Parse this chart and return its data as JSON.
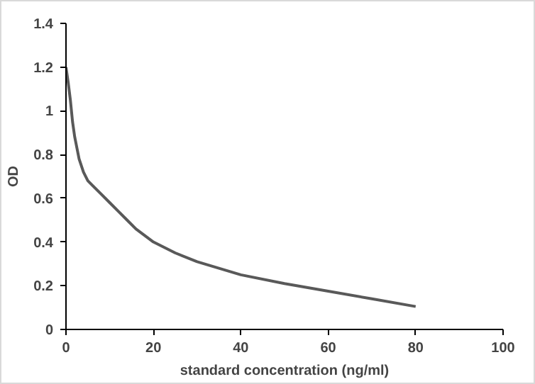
{
  "chart_data": {
    "type": "line",
    "xlabel": "standard concentration (ng/ml)",
    "ylabel": "OD",
    "x": [
      0,
      0.5,
      1,
      1.5,
      2,
      3,
      4,
      5,
      6,
      8,
      10,
      12,
      14,
      16,
      20,
      25,
      30,
      35,
      40,
      50,
      60,
      70,
      80
    ],
    "series": [
      {
        "color": "#595959",
        "values": [
          1.2,
          1.13,
          1.05,
          0.95,
          0.88,
          0.78,
          0.72,
          0.68,
          0.66,
          0.62,
          0.58,
          0.54,
          0.5,
          0.46,
          0.4,
          0.35,
          0.31,
          0.28,
          0.25,
          0.21,
          0.175,
          0.14,
          0.105
        ]
      }
    ],
    "xlim": [
      0,
      100
    ],
    "xticks": [
      0,
      20,
      40,
      60,
      80,
      100
    ],
    "ylim": [
      0,
      1.4
    ],
    "yticks": [
      0,
      0.2,
      0.4,
      0.6,
      0.8,
      1,
      1.2,
      1.4
    ],
    "grid": false,
    "marker": "none",
    "line_style": "solid"
  }
}
